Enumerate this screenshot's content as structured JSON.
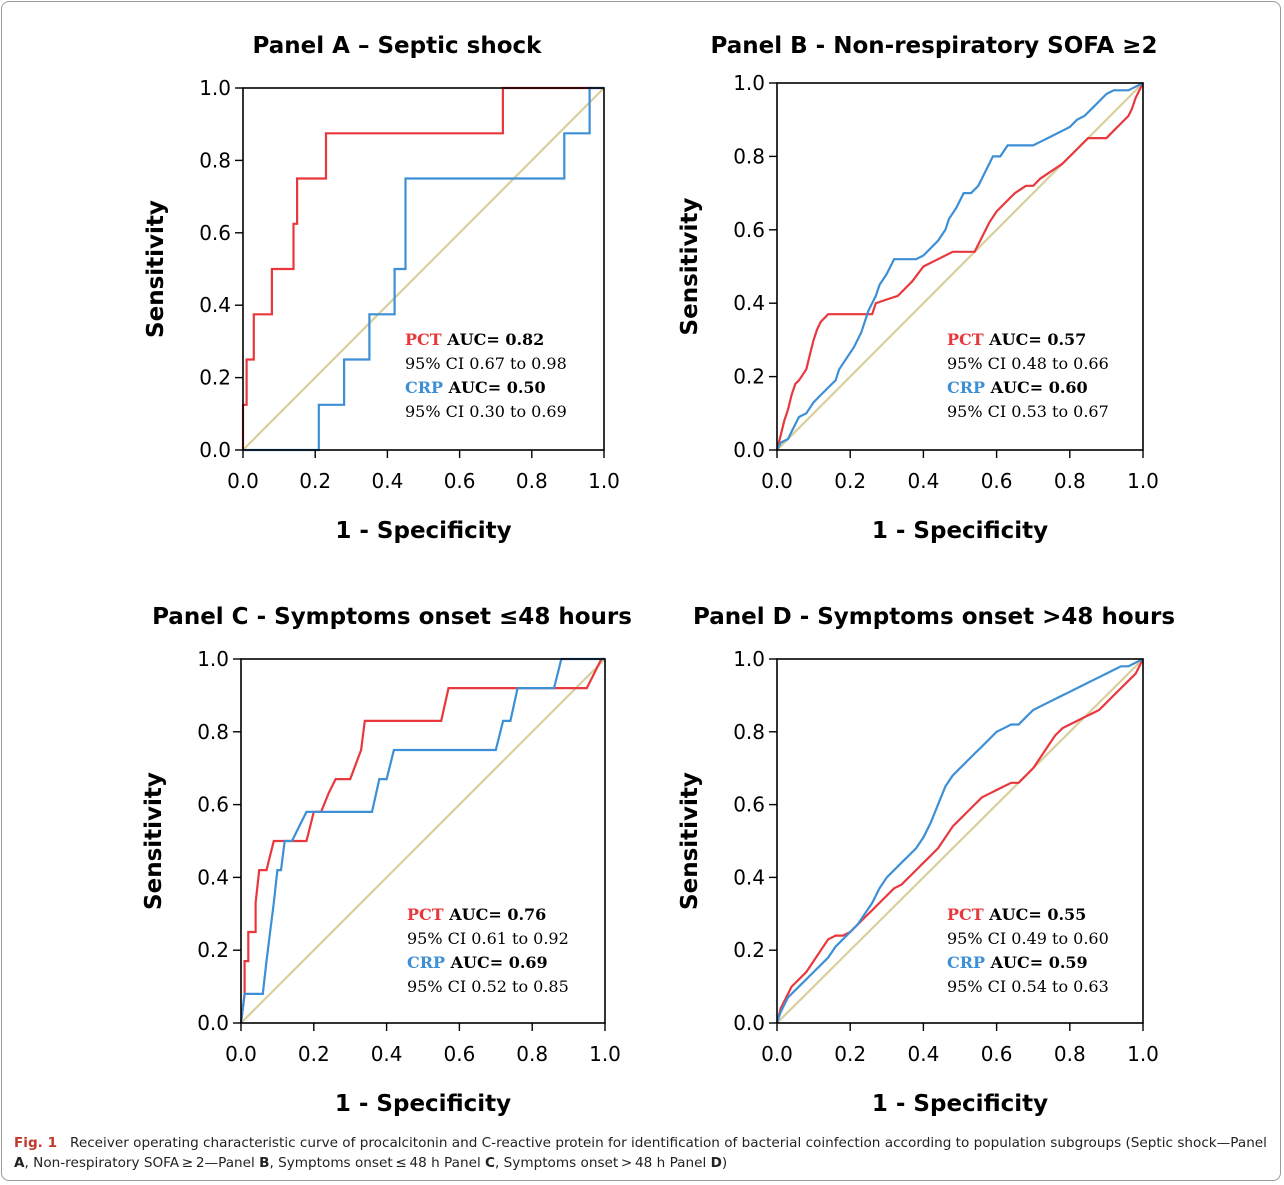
{
  "chart_data": [
    {
      "type": "line",
      "title": "Panel A – Septic shock",
      "xlabel": "1 - Specificity",
      "ylabel": "Sensitivity",
      "xlim": [
        0,
        1
      ],
      "ylim": [
        0,
        1
      ],
      "ticks": [
        "0.0",
        "0.2",
        "0.4",
        "0.6",
        "0.8",
        "1.0"
      ],
      "colors": {
        "pct": "#e8383d",
        "crp": "#3d8fd6",
        "reference": "#d8cf9c"
      },
      "series": [
        {
          "key": "pct",
          "x": [
            0,
            0,
            0.01,
            0.01,
            0.03,
            0.03,
            0.04,
            0.04,
            0.08,
            0.08,
            0.1,
            0.1,
            0.14,
            0.14,
            0.15,
            0.15,
            0.23,
            0.23,
            0.25,
            0.25,
            0.72,
            0.72,
            1.0
          ],
          "y": [
            0,
            0.125,
            0.125,
            0.25,
            0.25,
            0.375,
            0.375,
            0.375,
            0.375,
            0.5,
            0.5,
            0.5,
            0.5,
            0.625,
            0.625,
            0.75,
            0.75,
            0.875,
            0.875,
            0.875,
            0.875,
            1.0,
            1.0
          ]
        },
        {
          "key": "crp",
          "x": [
            0,
            0.21,
            0.21,
            0.26,
            0.28,
            0.28,
            0.34,
            0.35,
            0.35,
            0.41,
            0.42,
            0.42,
            0.45,
            0.45,
            0.89,
            0.89,
            0.96,
            0.96,
            1.0
          ],
          "y": [
            0,
            0,
            0.125,
            0.125,
            0.125,
            0.25,
            0.25,
            0.25,
            0.375,
            0.375,
            0.375,
            0.5,
            0.5,
            0.75,
            0.75,
            0.875,
            0.875,
            1.0,
            1.0
          ]
        }
      ],
      "legend": {
        "pct_label": "PCT",
        "pct_auc": "AUC= 0.82",
        "pct_ci": "95% CI 0.67 to 0.98",
        "crp_label": "CRP",
        "crp_auc": "AUC= 0.50",
        "crp_ci": "95% CI 0.30 to 0.69"
      }
    },
    {
      "type": "line",
      "title": "Panel B - Non-respiratory SOFA ≥2",
      "xlabel": "1 - Specificity",
      "ylabel": "Sensitivity",
      "xlim": [
        0,
        1
      ],
      "ylim": [
        0,
        1
      ],
      "ticks": [
        "0.0",
        "0.2",
        "0.4",
        "0.6",
        "0.8",
        "1.0"
      ],
      "colors": {
        "pct": "#e8383d",
        "crp": "#3d8fd6",
        "reference": "#d8cf9c"
      },
      "series": [
        {
          "key": "pct",
          "x": [
            0,
            0.01,
            0.02,
            0.03,
            0.04,
            0.05,
            0.06,
            0.08,
            0.09,
            0.1,
            0.11,
            0.12,
            0.14,
            0.16,
            0.18,
            0.2,
            0.24,
            0.26,
            0.27,
            0.3,
            0.33,
            0.35,
            0.37,
            0.4,
            0.44,
            0.48,
            0.52,
            0.54,
            0.56,
            0.58,
            0.6,
            0.63,
            0.65,
            0.68,
            0.7,
            0.72,
            0.75,
            0.78,
            0.8,
            0.82,
            0.85,
            0.88,
            0.9,
            0.92,
            0.94,
            0.96,
            0.97,
            0.98,
            1.0
          ],
          "y": [
            0,
            0.04,
            0.08,
            0.11,
            0.15,
            0.18,
            0.19,
            0.22,
            0.26,
            0.3,
            0.33,
            0.35,
            0.37,
            0.37,
            0.37,
            0.37,
            0.37,
            0.37,
            0.4,
            0.41,
            0.42,
            0.44,
            0.46,
            0.5,
            0.52,
            0.54,
            0.54,
            0.54,
            0.58,
            0.62,
            0.65,
            0.68,
            0.7,
            0.72,
            0.72,
            0.74,
            0.76,
            0.78,
            0.8,
            0.82,
            0.85,
            0.85,
            0.85,
            0.87,
            0.89,
            0.91,
            0.93,
            0.96,
            1.0
          ]
        },
        {
          "key": "crp",
          "x": [
            0,
            0.01,
            0.03,
            0.04,
            0.05,
            0.06,
            0.08,
            0.1,
            0.12,
            0.14,
            0.16,
            0.17,
            0.19,
            0.21,
            0.23,
            0.25,
            0.27,
            0.28,
            0.3,
            0.32,
            0.34,
            0.36,
            0.38,
            0.4,
            0.42,
            0.44,
            0.46,
            0.47,
            0.49,
            0.51,
            0.53,
            0.55,
            0.57,
            0.59,
            0.61,
            0.63,
            0.66,
            0.7,
            0.72,
            0.74,
            0.76,
            0.78,
            0.8,
            0.82,
            0.84,
            0.86,
            0.88,
            0.9,
            0.92,
            0.94,
            0.96,
            1.0
          ],
          "y": [
            0,
            0.02,
            0.03,
            0.05,
            0.07,
            0.09,
            0.1,
            0.13,
            0.15,
            0.17,
            0.19,
            0.22,
            0.25,
            0.28,
            0.32,
            0.38,
            0.42,
            0.45,
            0.48,
            0.52,
            0.52,
            0.52,
            0.52,
            0.53,
            0.55,
            0.57,
            0.6,
            0.63,
            0.66,
            0.7,
            0.7,
            0.72,
            0.76,
            0.8,
            0.8,
            0.83,
            0.83,
            0.83,
            0.84,
            0.85,
            0.86,
            0.87,
            0.88,
            0.9,
            0.91,
            0.93,
            0.95,
            0.97,
            0.98,
            0.98,
            0.98,
            1.0
          ]
        }
      ],
      "legend": {
        "pct_label": "PCT",
        "pct_auc": "AUC= 0.57",
        "pct_ci": "95% CI 0.48 to 0.66",
        "crp_label": "CRP",
        "crp_auc": "AUC= 0.60",
        "crp_ci": "95% CI 0.53 to 0.67"
      }
    },
    {
      "type": "line",
      "title": "Panel C - Symptoms onset ≤48 hours",
      "xlabel": "1 - Specificity",
      "ylabel": "Sensitivity",
      "xlim": [
        0,
        1
      ],
      "ylim": [
        0,
        1
      ],
      "ticks": [
        "0.0",
        "0.2",
        "0.4",
        "0.6",
        "0.8",
        "1.0"
      ],
      "colors": {
        "pct": "#e8383d",
        "crp": "#3d8fd6",
        "reference": "#d8cf9c"
      },
      "series": [
        {
          "key": "pct",
          "x": [
            0,
            0.01,
            0.01,
            0.02,
            0.02,
            0.03,
            0.04,
            0.04,
            0.05,
            0.06,
            0.07,
            0.08,
            0.09,
            0.09,
            0.18,
            0.18,
            0.2,
            0.22,
            0.22,
            0.24,
            0.26,
            0.27,
            0.3,
            0.33,
            0.34,
            0.36,
            0.38,
            0.55,
            0.57,
            0.95,
            0.97,
            0.99,
            1.0
          ],
          "y": [
            0,
            0.08,
            0.17,
            0.17,
            0.25,
            0.25,
            0.25,
            0.33,
            0.42,
            0.42,
            0.42,
            0.46,
            0.5,
            0.5,
            0.5,
            0.5,
            0.58,
            0.58,
            0.58,
            0.63,
            0.67,
            0.67,
            0.67,
            0.75,
            0.83,
            0.83,
            0.83,
            0.83,
            0.92,
            0.92,
            0.96,
            1.0,
            1.0
          ]
        },
        {
          "key": "crp",
          "x": [
            0,
            0.01,
            0.02,
            0.06,
            0.07,
            0.08,
            0.09,
            0.1,
            0.11,
            0.12,
            0.13,
            0.14,
            0.16,
            0.18,
            0.2,
            0.24,
            0.28,
            0.36,
            0.38,
            0.4,
            0.42,
            0.46,
            0.5,
            0.68,
            0.7,
            0.72,
            0.74,
            0.76,
            0.86,
            0.87,
            0.88,
            0.92,
            0.96,
            1.0
          ],
          "y": [
            0,
            0.08,
            0.08,
            0.08,
            0.17,
            0.25,
            0.33,
            0.42,
            0.42,
            0.5,
            0.5,
            0.5,
            0.54,
            0.58,
            0.58,
            0.58,
            0.58,
            0.58,
            0.67,
            0.67,
            0.75,
            0.75,
            0.75,
            0.75,
            0.75,
            0.83,
            0.83,
            0.92,
            0.92,
            0.96,
            1.0,
            1.0,
            1.0,
            1.0
          ]
        }
      ],
      "legend": {
        "pct_label": "PCT",
        "pct_auc": "AUC= 0.76",
        "pct_ci": "95% CI 0.61 to 0.92",
        "crp_label": "CRP",
        "crp_auc": "AUC= 0.69",
        "crp_ci": "95% CI 0.52 to 0.85"
      }
    },
    {
      "type": "line",
      "title": "Panel D - Symptoms onset >48 hours",
      "xlabel": "1 - Specificity",
      "ylabel": "Sensitivity",
      "xlim": [
        0,
        1
      ],
      "ylim": [
        0,
        1
      ],
      "ticks": [
        "0.0",
        "0.2",
        "0.4",
        "0.6",
        "0.8",
        "1.0"
      ],
      "colors": {
        "pct": "#e8383d",
        "crp": "#3d8fd6",
        "reference": "#d8cf9c"
      },
      "series": [
        {
          "key": "pct",
          "x": [
            0,
            0.01,
            0.02,
            0.03,
            0.04,
            0.05,
            0.06,
            0.08,
            0.1,
            0.12,
            0.14,
            0.16,
            0.18,
            0.2,
            0.22,
            0.24,
            0.26,
            0.28,
            0.3,
            0.32,
            0.34,
            0.36,
            0.38,
            0.4,
            0.42,
            0.44,
            0.46,
            0.48,
            0.5,
            0.52,
            0.54,
            0.56,
            0.58,
            0.6,
            0.62,
            0.64,
            0.66,
            0.68,
            0.7,
            0.72,
            0.74,
            0.76,
            0.78,
            0.8,
            0.82,
            0.84,
            0.86,
            0.88,
            0.9,
            0.92,
            0.94,
            0.96,
            0.98,
            1.0
          ],
          "y": [
            0,
            0.04,
            0.06,
            0.08,
            0.1,
            0.11,
            0.12,
            0.14,
            0.17,
            0.2,
            0.23,
            0.24,
            0.24,
            0.25,
            0.27,
            0.29,
            0.31,
            0.33,
            0.35,
            0.37,
            0.38,
            0.4,
            0.42,
            0.44,
            0.46,
            0.48,
            0.51,
            0.54,
            0.56,
            0.58,
            0.6,
            0.62,
            0.63,
            0.64,
            0.65,
            0.66,
            0.66,
            0.68,
            0.7,
            0.73,
            0.76,
            0.79,
            0.81,
            0.82,
            0.83,
            0.84,
            0.85,
            0.86,
            0.88,
            0.9,
            0.92,
            0.94,
            0.96,
            1.0
          ]
        },
        {
          "key": "crp",
          "x": [
            0,
            0.01,
            0.02,
            0.03,
            0.04,
            0.05,
            0.06,
            0.08,
            0.1,
            0.12,
            0.14,
            0.16,
            0.18,
            0.2,
            0.22,
            0.24,
            0.26,
            0.28,
            0.3,
            0.32,
            0.34,
            0.36,
            0.38,
            0.4,
            0.42,
            0.44,
            0.46,
            0.48,
            0.5,
            0.52,
            0.54,
            0.56,
            0.58,
            0.6,
            0.62,
            0.64,
            0.66,
            0.68,
            0.7,
            0.72,
            0.74,
            0.76,
            0.78,
            0.8,
            0.82,
            0.84,
            0.86,
            0.88,
            0.9,
            0.92,
            0.94,
            0.96,
            0.98,
            1.0
          ],
          "y": [
            0,
            0.03,
            0.05,
            0.07,
            0.08,
            0.09,
            0.1,
            0.12,
            0.14,
            0.16,
            0.18,
            0.21,
            0.23,
            0.25,
            0.27,
            0.3,
            0.33,
            0.37,
            0.4,
            0.42,
            0.44,
            0.46,
            0.48,
            0.51,
            0.55,
            0.6,
            0.65,
            0.68,
            0.7,
            0.72,
            0.74,
            0.76,
            0.78,
            0.8,
            0.81,
            0.82,
            0.82,
            0.84,
            0.86,
            0.87,
            0.88,
            0.89,
            0.9,
            0.91,
            0.92,
            0.93,
            0.94,
            0.95,
            0.96,
            0.97,
            0.98,
            0.98,
            0.99,
            1.0
          ]
        }
      ],
      "legend": {
        "pct_label": "PCT",
        "pct_auc": "AUC= 0.55",
        "pct_ci": "95% CI 0.49 to 0.60",
        "crp_label": "CRP",
        "crp_auc": "AUC= 0.59",
        "crp_ci": "95% CI 0.54 to 0.63"
      }
    }
  ],
  "caption": {
    "label": "Fig. 1",
    "text_1": "Receiver operating characteristic curve of procalcitonin and C-reactive protein for identification of bacterial coinfection according to population subgroups (Septic shock—Panel ",
    "panel_a": "A",
    "text_2": ", Non-respiratory SOFA ≥ 2—Panel ",
    "panel_b": "B",
    "text_3": ", Symptoms onset ≤ 48 h Panel ",
    "panel_c": "C",
    "text_4": ", Symptoms onset > 48 h Panel ",
    "panel_d": "D",
    "text_5": ")"
  }
}
